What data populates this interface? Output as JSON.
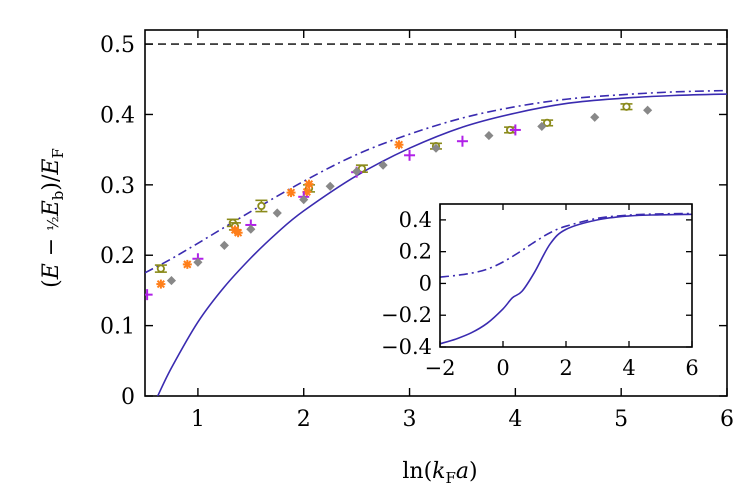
{
  "chart_data": {
    "type": "scatter",
    "xlabel": "ln(k_F a)",
    "ylabel": "(E − ½E_b)/E_F",
    "xlim": [
      0.5,
      6
    ],
    "ylim": [
      0,
      0.52
    ],
    "x_ticks": [
      "1",
      "2",
      "3",
      "4",
      "5",
      "6"
    ],
    "y_ticks": [
      "0",
      "0.1",
      "0.2",
      "0.3",
      "0.4",
      "0.5"
    ],
    "grid": false,
    "legend": "none",
    "colors": {
      "curve": "#3a2bb0",
      "olive": "#8a8a1a",
      "orange": "#ff7f1a",
      "magenta": "#b020e8",
      "gray": "#888888"
    },
    "series": [
      {
        "style": "dashed-black",
        "x": [
          0.5,
          6.0
        ],
        "y": [
          0.5,
          0.5
        ]
      },
      {
        "style": "dashdot-curve",
        "x": [
          0.5,
          0.75,
          1.0,
          1.5,
          2.0,
          2.5,
          3.0,
          3.5,
          4.0,
          4.5,
          5.0,
          5.5,
          6.0
        ],
        "y": [
          0.175,
          0.195,
          0.217,
          0.262,
          0.305,
          0.343,
          0.372,
          0.395,
          0.411,
          0.422,
          0.428,
          0.432,
          0.434
        ]
      },
      {
        "style": "solid-curve",
        "x": [
          0.62,
          0.75,
          1.0,
          1.25,
          1.5,
          1.75,
          2.0,
          2.5,
          3.0,
          3.5,
          4.0,
          4.5,
          5.0,
          5.5,
          6.0
        ],
        "y": [
          0.0,
          0.04,
          0.105,
          0.155,
          0.196,
          0.232,
          0.263,
          0.313,
          0.352,
          0.382,
          0.402,
          0.416,
          0.423,
          0.427,
          0.429
        ]
      },
      {
        "style": "olive-circles",
        "x": [
          0.65,
          1.33,
          1.35,
          1.6,
          2.05,
          2.55,
          3.25,
          3.95,
          4.3,
          5.05
        ],
        "y": [
          0.181,
          0.246,
          0.241,
          0.27,
          0.295,
          0.323,
          0.355,
          0.378,
          0.388,
          0.411
        ],
        "err": [
          0.005,
          0.005,
          0.005,
          0.008,
          0.005,
          0.005,
          0.004,
          0.004,
          0.004,
          0.004
        ]
      },
      {
        "style": "orange-stars",
        "x": [
          0.65,
          0.9,
          1.35,
          1.38,
          1.88,
          2.03,
          2.05,
          2.9
        ],
        "y": [
          0.159,
          0.187,
          0.236,
          0.232,
          0.289,
          0.29,
          0.301,
          0.357
        ]
      },
      {
        "style": "magenta-plus",
        "x": [
          0.52,
          1.0,
          1.5,
          2.0,
          2.5,
          3.0,
          3.5,
          4.0
        ],
        "y": [
          0.144,
          0.195,
          0.243,
          0.283,
          0.318,
          0.342,
          0.362,
          0.378
        ]
      },
      {
        "style": "gray-diamonds",
        "x": [
          0.75,
          1.0,
          1.25,
          1.5,
          1.75,
          2.0,
          2.25,
          2.5,
          2.75,
          3.25,
          3.75,
          4.25,
          4.75,
          5.25
        ],
        "y": [
          0.164,
          0.19,
          0.214,
          0.237,
          0.26,
          0.279,
          0.298,
          0.319,
          0.328,
          0.352,
          0.37,
          0.383,
          0.396,
          0.406
        ]
      }
    ],
    "inset": {
      "xlim": [
        -2,
        6
      ],
      "ylim": [
        -0.4,
        0.5
      ],
      "x_ticks": [
        "−2",
        "0",
        "2",
        "4",
        "6"
      ],
      "y_ticks": [
        "−0.4",
        "−0.2",
        "0",
        "0.2",
        "0.4"
      ],
      "series": [
        {
          "style": "dashdot-curve",
          "x": [
            -2.0,
            -1.5,
            -1.0,
            -0.5,
            0.0,
            0.5,
            1.0,
            1.5,
            2.0,
            3.0,
            4.0,
            5.0,
            6.0
          ],
          "y": [
            0.04,
            0.05,
            0.065,
            0.09,
            0.135,
            0.195,
            0.26,
            0.32,
            0.36,
            0.41,
            0.43,
            0.438,
            0.44
          ]
        },
        {
          "style": "solid-curve",
          "x": [
            -2.0,
            -1.5,
            -1.0,
            -0.5,
            0.0,
            0.3,
            0.6,
            1.0,
            1.5,
            2.0,
            3.0,
            4.0,
            5.0,
            6.0
          ],
          "y": [
            -0.38,
            -0.35,
            -0.31,
            -0.25,
            -0.16,
            -0.09,
            -0.05,
            0.07,
            0.25,
            0.34,
            0.4,
            0.425,
            0.432,
            0.435
          ]
        }
      ]
    }
  }
}
